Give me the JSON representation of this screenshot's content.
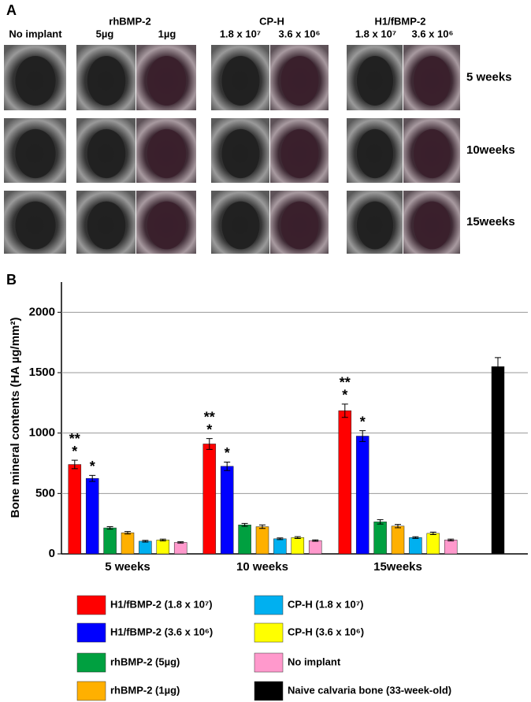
{
  "panel_a": {
    "label": "A",
    "column_groups": [
      "rhBMP-2",
      "CP-H",
      "H1/fBMP-2"
    ],
    "columns": [
      "No implant",
      "5µg",
      "1µg",
      "1.8 x 10⁷",
      "3.6 x 10⁶",
      "1.8 x 10⁷",
      "3.6 x 10⁶"
    ],
    "rows": [
      "5 weeks",
      "10weeks",
      "15weeks"
    ]
  },
  "chart_data": {
    "type": "bar",
    "panel_label": "B",
    "y_label": "Bone mineral contents (HA µg/mm²)",
    "categories": [
      "5 weeks",
      "10 weeks",
      "15weeks",
      null
    ],
    "ylim": [
      0,
      2250
    ],
    "yticks": [
      0,
      500,
      1000,
      1500,
      2000
    ],
    "grid": true,
    "series": [
      {
        "name": "H1/fBMP-2 (1.8 x 10⁷)",
        "color": "#ff0000",
        "values": [
          740,
          910,
          1185,
          null
        ],
        "errors": [
          35,
          45,
          55,
          null
        ],
        "significance": [
          [
            "**",
            "*"
          ],
          [
            "**",
            "*"
          ],
          [
            "**",
            "*"
          ],
          null
        ]
      },
      {
        "name": "H1/fBMP-2 (3.6 x 10⁶)",
        "color": "#0000ff",
        "values": [
          625,
          725,
          975,
          null
        ],
        "errors": [
          25,
          35,
          45,
          null
        ],
        "significance": [
          [
            "*"
          ],
          [
            "*"
          ],
          [
            "*"
          ],
          null
        ]
      },
      {
        "name": "rhBMP-2 (5µg)",
        "color": "#00a040",
        "values": [
          215,
          240,
          265,
          null
        ],
        "errors": [
          10,
          12,
          18,
          null
        ]
      },
      {
        "name": "rhBMP-2 (1µg)",
        "color": "#ffb000",
        "values": [
          175,
          225,
          230,
          null
        ],
        "errors": [
          10,
          15,
          14,
          null
        ]
      },
      {
        "name": "CP-H (1.8 x 10⁷)",
        "color": "#00b0f0",
        "values": [
          105,
          125,
          135,
          null
        ],
        "errors": [
          7,
          7,
          7,
          null
        ]
      },
      {
        "name": "CP-H (3.6 x 10⁶)",
        "color": "#ffff00",
        "values": [
          115,
          135,
          170,
          null
        ],
        "errors": [
          7,
          8,
          10,
          null
        ]
      },
      {
        "name": "No implant",
        "color": "#ff99cc",
        "values": [
          95,
          110,
          115,
          null
        ],
        "errors": [
          5,
          6,
          7,
          null
        ]
      },
      {
        "name": "Naive calvaria bone (33-week-old)",
        "color": "#000000",
        "values": [
          null,
          null,
          null,
          1550
        ],
        "errors": [
          null,
          null,
          null,
          75
        ]
      }
    ]
  }
}
